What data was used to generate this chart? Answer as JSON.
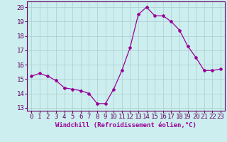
{
  "x": [
    0,
    1,
    2,
    3,
    4,
    5,
    6,
    7,
    8,
    9,
    10,
    11,
    12,
    13,
    14,
    15,
    16,
    17,
    18,
    19,
    20,
    21,
    22,
    23
  ],
  "y": [
    15.2,
    15.4,
    15.2,
    14.9,
    14.4,
    14.3,
    14.2,
    14.0,
    13.3,
    13.3,
    14.3,
    15.6,
    17.2,
    19.5,
    20.0,
    19.4,
    19.4,
    19.0,
    18.4,
    17.3,
    16.5,
    15.6,
    15.6,
    15.7
  ],
  "line_color": "#990099",
  "marker": "D",
  "marker_size": 2,
  "bg_color": "#cceeee",
  "grid_color": "#aacccc",
  "xlabel": "Windchill (Refroidissement éolien,°C)",
  "ylabel_ticks": [
    13,
    14,
    15,
    16,
    17,
    18,
    19,
    20
  ],
  "xlim": [
    -0.5,
    23.5
  ],
  "ylim": [
    12.8,
    20.4
  ],
  "xlabel_fontsize": 6.5,
  "tick_fontsize": 6.5
}
